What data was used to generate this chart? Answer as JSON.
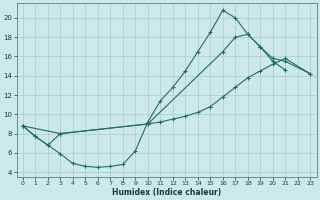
{
  "xlabel": "Humidex (Indice chaleur)",
  "xlim": [
    -0.5,
    23.5
  ],
  "ylim": [
    3.5,
    21.5
  ],
  "xticks": [
    0,
    1,
    2,
    3,
    4,
    5,
    6,
    7,
    8,
    9,
    10,
    11,
    12,
    13,
    14,
    15,
    16,
    17,
    18,
    19,
    20,
    21,
    22,
    23
  ],
  "yticks": [
    4,
    6,
    8,
    10,
    12,
    14,
    16,
    18,
    20
  ],
  "bg_color": "#cde8e8",
  "grid_color": "#b0d0d0",
  "line_color": "#1e6e64",
  "line1_x": [
    0,
    1,
    2,
    3,
    4,
    5,
    6,
    7,
    8,
    9,
    10,
    11,
    12,
    13,
    14,
    15,
    16,
    17,
    18,
    19,
    20,
    21
  ],
  "line1_y": [
    8.8,
    7.7,
    6.8,
    5.9,
    4.9,
    4.6,
    4.5,
    4.6,
    4.8,
    6.2,
    9.2,
    11.4,
    12.8,
    14.5,
    16.5,
    18.5,
    20.8,
    20.0,
    18.3,
    17.0,
    15.5,
    14.6
  ],
  "line2_x": [
    0,
    1,
    2,
    3,
    10,
    11,
    12,
    13,
    14,
    15,
    16,
    17,
    18,
    19,
    20,
    21,
    23
  ],
  "line2_y": [
    8.8,
    7.7,
    6.8,
    8.0,
    9.0,
    9.2,
    9.5,
    9.8,
    10.2,
    10.8,
    11.8,
    12.8,
    13.8,
    14.5,
    15.2,
    15.8,
    14.2
  ],
  "line3_x": [
    0,
    3,
    10,
    16,
    17,
    18,
    19,
    20,
    21,
    23
  ],
  "line3_y": [
    8.8,
    8.0,
    9.0,
    16.5,
    18.0,
    18.3,
    17.0,
    15.8,
    15.5,
    14.2
  ]
}
